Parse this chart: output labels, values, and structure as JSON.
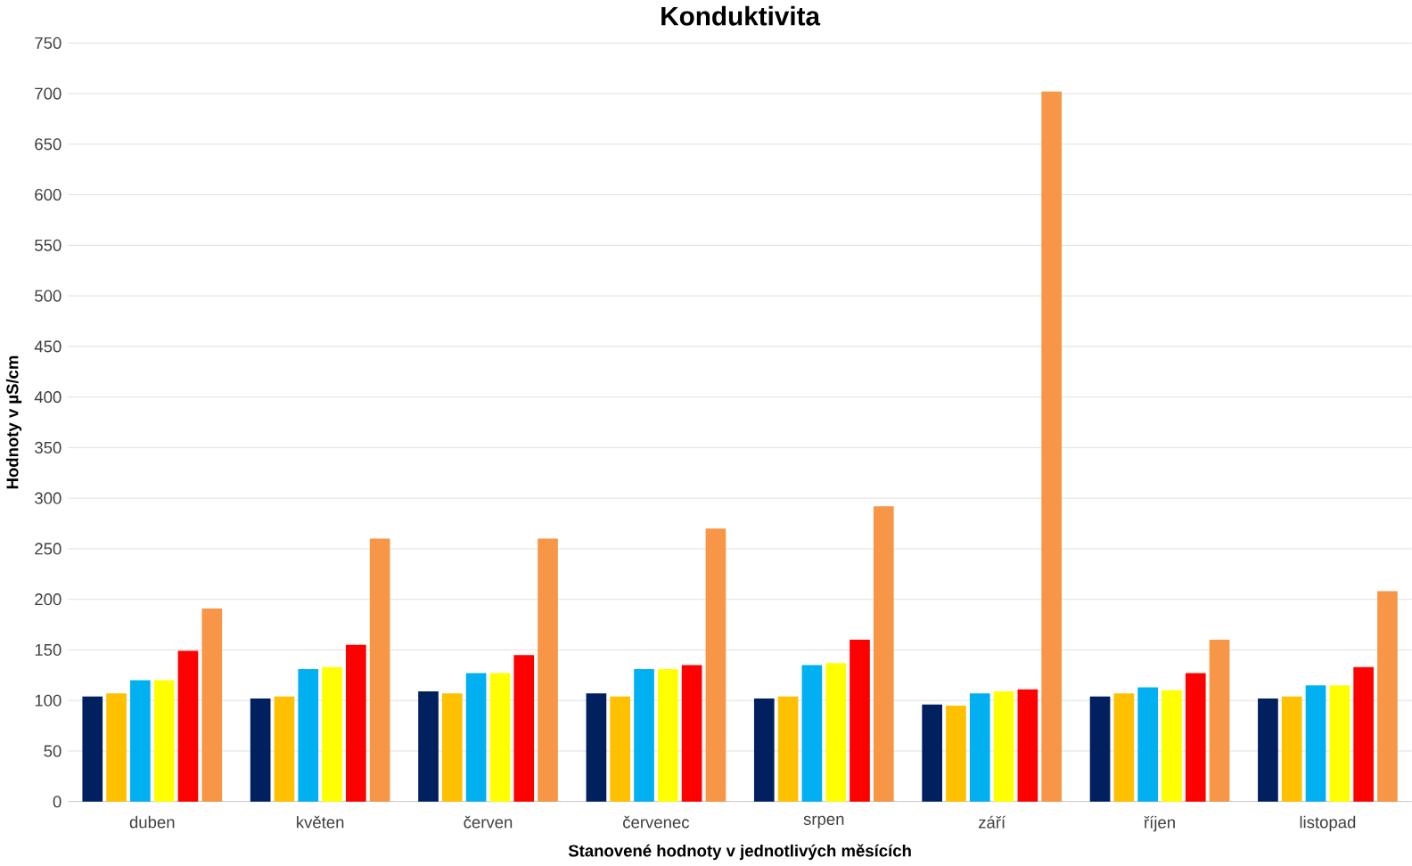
{
  "chart_data": {
    "type": "bar",
    "title": "Konduktivita",
    "xlabel": "Stanovené hodnoty v jednotlivých měsících",
    "ylabel": "Hodnoty v µS/cm",
    "categories": [
      "duben",
      "květen",
      "červen",
      "červenec",
      "srpen",
      "září",
      "říjen",
      "listopad"
    ],
    "series": [
      {
        "color": "#002060",
        "values": [
          104,
          102,
          109,
          107,
          102,
          96,
          104,
          102
        ]
      },
      {
        "color": "#ffc000",
        "values": [
          107,
          104,
          107,
          104,
          104,
          95,
          107,
          104
        ]
      },
      {
        "color": "#00b0f0",
        "values": [
          120,
          131,
          127,
          131,
          135,
          107,
          113,
          115
        ]
      },
      {
        "color": "#ffff00",
        "values": [
          120,
          133,
          127,
          131,
          137,
          109,
          110,
          115
        ]
      },
      {
        "color": "#ff0000",
        "values": [
          149,
          155,
          145,
          135,
          160,
          111,
          127,
          133
        ]
      },
      {
        "color": "#f79646",
        "values": [
          191,
          260,
          260,
          270,
          292,
          702,
          160,
          208
        ]
      }
    ],
    "ylim": [
      0,
      750
    ],
    "yticks": [
      0,
      50,
      100,
      150,
      200,
      250,
      300,
      350,
      400,
      450,
      500,
      550,
      600,
      650,
      700,
      750
    ],
    "grid": "y"
  }
}
